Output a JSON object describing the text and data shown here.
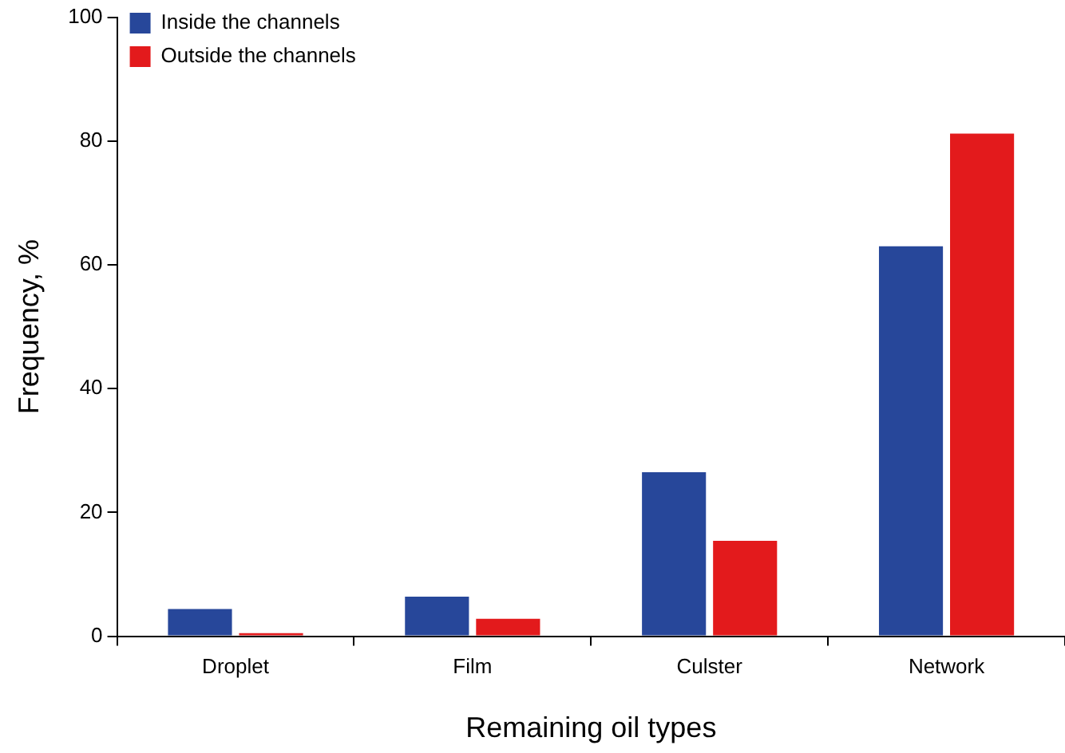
{
  "chart_data": {
    "type": "bar",
    "xlabel": "Remaining oil types",
    "ylabel": "Frequency, %",
    "categories": [
      "Droplet",
      "Film",
      "Culster",
      "Network"
    ],
    "series": [
      {
        "name": "Inside the channels",
        "color": "#27479a",
        "values": [
          4.4,
          6.4,
          26.5,
          63
        ]
      },
      {
        "name": "Outside the channels",
        "color": "#e31a1c",
        "values": [
          0.5,
          2.8,
          15.4,
          81.2
        ]
      }
    ],
    "ylim": [
      0,
      100
    ],
    "yticks": [
      0,
      20,
      40,
      60,
      80,
      100
    ],
    "grid": false,
    "legend": "top left"
  }
}
